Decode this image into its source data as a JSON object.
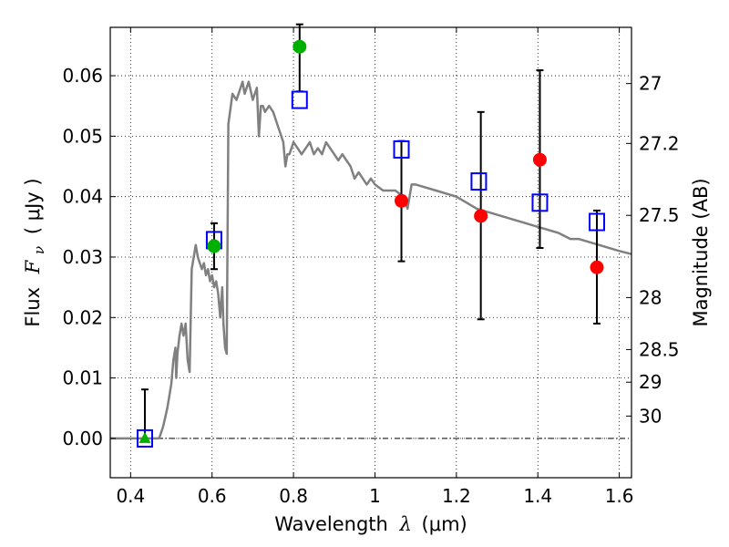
{
  "chart_data": {
    "type": "scatter",
    "xlabel_prefix": "Wavelength",
    "xlabel_symbol": "λ",
    "xlabel_unit": "(μm)",
    "ylabel_prefix": "Flux",
    "ylabel_symbol": "F",
    "ylabel_sub": "ν",
    "ylabel_unit": "( μJy )",
    "y2label": "Magnitude (AB)",
    "xlim": [
      0.35,
      1.63
    ],
    "ylim": [
      -0.0065,
      0.068
    ],
    "grid": true,
    "x_ticks": [
      0.4,
      0.6,
      0.8,
      1.0,
      1.2,
      1.4,
      1.6
    ],
    "x_tick_labels": [
      "0.4",
      "0.6",
      "0.8",
      "1",
      "1.2",
      "1.4",
      "1.6"
    ],
    "y_ticks": [
      0.0,
      0.01,
      0.02,
      0.03,
      0.04,
      0.05,
      0.06
    ],
    "y_tick_labels": [
      "0.00",
      "0.01",
      "0.02",
      "0.03",
      "0.04",
      "0.05",
      "0.06"
    ],
    "mag_ticks": [
      {
        "label": "27",
        "flux": 0.0587
      },
      {
        "label": "27.2",
        "flux": 0.0488
      },
      {
        "label": "27.5",
        "flux": 0.0369
      },
      {
        "label": "28",
        "flux": 0.0233
      },
      {
        "label": "28.5",
        "flux": 0.0147
      },
      {
        "label": "29",
        "flux": 0.0093
      },
      {
        "label": "30",
        "flux": 0.0037
      }
    ],
    "colors": {
      "model": "#808080",
      "observed_red": "#ff0000",
      "observed_green": "#00b000",
      "model_photometry": "#0000ff",
      "errorbar": "#000000"
    },
    "series": [
      {
        "type": "line",
        "points": [
          [
            0.35,
            0.0
          ],
          [
            0.45,
            0.0
          ],
          [
            0.47,
            0.0
          ],
          [
            0.475,
            0.001
          ],
          [
            0.48,
            0.002
          ],
          [
            0.49,
            0.005
          ],
          [
            0.5,
            0.009
          ],
          [
            0.505,
            0.013
          ],
          [
            0.51,
            0.015
          ],
          [
            0.512,
            0.01
          ],
          [
            0.515,
            0.014
          ],
          [
            0.52,
            0.017
          ],
          [
            0.525,
            0.019
          ],
          [
            0.53,
            0.017
          ],
          [
            0.535,
            0.019
          ],
          [
            0.54,
            0.013
          ],
          [
            0.545,
            0.011
          ],
          [
            0.55,
            0.028
          ],
          [
            0.555,
            0.03
          ],
          [
            0.56,
            0.032
          ],
          [
            0.565,
            0.03
          ],
          [
            0.57,
            0.029
          ],
          [
            0.575,
            0.028
          ],
          [
            0.58,
            0.029
          ],
          [
            0.585,
            0.027
          ],
          [
            0.59,
            0.028
          ],
          [
            0.595,
            0.026
          ],
          [
            0.6,
            0.027
          ],
          [
            0.605,
            0.025
          ],
          [
            0.61,
            0.026
          ],
          [
            0.615,
            0.024
          ],
          [
            0.62,
            0.02
          ],
          [
            0.625,
            0.025
          ],
          [
            0.628,
            0.019
          ],
          [
            0.632,
            0.015
          ],
          [
            0.636,
            0.014
          ],
          [
            0.64,
            0.052
          ],
          [
            0.65,
            0.057
          ],
          [
            0.66,
            0.056
          ],
          [
            0.67,
            0.058
          ],
          [
            0.675,
            0.059
          ],
          [
            0.68,
            0.057
          ],
          [
            0.69,
            0.059
          ],
          [
            0.7,
            0.056
          ],
          [
            0.705,
            0.057
          ],
          [
            0.71,
            0.058
          ],
          [
            0.715,
            0.05
          ],
          [
            0.72,
            0.055
          ],
          [
            0.725,
            0.055
          ],
          [
            0.73,
            0.054
          ],
          [
            0.74,
            0.055
          ],
          [
            0.75,
            0.054
          ],
          [
            0.76,
            0.052
          ],
          [
            0.77,
            0.05
          ],
          [
            0.775,
            0.049
          ],
          [
            0.78,
            0.045
          ],
          [
            0.785,
            0.047
          ],
          [
            0.79,
            0.047
          ],
          [
            0.8,
            0.049
          ],
          [
            0.81,
            0.048
          ],
          [
            0.82,
            0.047
          ],
          [
            0.83,
            0.048
          ],
          [
            0.84,
            0.049
          ],
          [
            0.85,
            0.047
          ],
          [
            0.86,
            0.048
          ],
          [
            0.87,
            0.047
          ],
          [
            0.88,
            0.049
          ],
          [
            0.89,
            0.048
          ],
          [
            0.9,
            0.047
          ],
          [
            0.91,
            0.046
          ],
          [
            0.92,
            0.047
          ],
          [
            0.93,
            0.046
          ],
          [
            0.94,
            0.045
          ],
          [
            0.95,
            0.043
          ],
          [
            0.96,
            0.044
          ],
          [
            0.97,
            0.043
          ],
          [
            0.98,
            0.042
          ],
          [
            0.99,
            0.043
          ],
          [
            1.0,
            0.042
          ],
          [
            1.02,
            0.041
          ],
          [
            1.05,
            0.041
          ],
          [
            1.07,
            0.04
          ],
          [
            1.08,
            0.038
          ],
          [
            1.09,
            0.042
          ],
          [
            1.1,
            0.042
          ],
          [
            1.15,
            0.041
          ],
          [
            1.2,
            0.04
          ],
          [
            1.25,
            0.038
          ],
          [
            1.3,
            0.037
          ],
          [
            1.35,
            0.036
          ],
          [
            1.4,
            0.035
          ],
          [
            1.45,
            0.034
          ],
          [
            1.48,
            0.033
          ],
          [
            1.5,
            0.033
          ],
          [
            1.55,
            0.032
          ],
          [
            1.6,
            0.031
          ],
          [
            1.63,
            0.0305
          ]
        ]
      },
      {
        "type": "markers",
        "marker": "square",
        "points": [
          [
            0.435,
            0.0
          ],
          [
            0.605,
            0.0328
          ],
          [
            0.815,
            0.056
          ],
          [
            1.065,
            0.0478
          ],
          [
            1.255,
            0.0425
          ],
          [
            1.405,
            0.039
          ],
          [
            1.545,
            0.0358
          ]
        ]
      },
      {
        "type": "markers",
        "marker": "circle",
        "color_key": "observed_red",
        "points": [
          [
            1.065,
            0.0393,
            0.0293,
            0.0492
          ],
          [
            1.26,
            0.0368,
            0.0197,
            0.054
          ],
          [
            1.405,
            0.0461,
            0.0315,
            0.0609
          ],
          [
            1.545,
            0.0283,
            0.019,
            0.0377
          ]
        ]
      },
      {
        "type": "markers",
        "marker": "circle",
        "color_key": "observed_green",
        "points": [
          [
            0.605,
            0.0318,
            0.028,
            0.0356
          ],
          [
            0.815,
            0.0648,
            0.0574,
            0.0685
          ]
        ]
      },
      {
        "type": "markers",
        "marker": "triangle",
        "color_key": "observed_green",
        "points": [
          [
            0.435,
            0.0,
            -0.0005,
            0.0081
          ]
        ]
      }
    ]
  }
}
